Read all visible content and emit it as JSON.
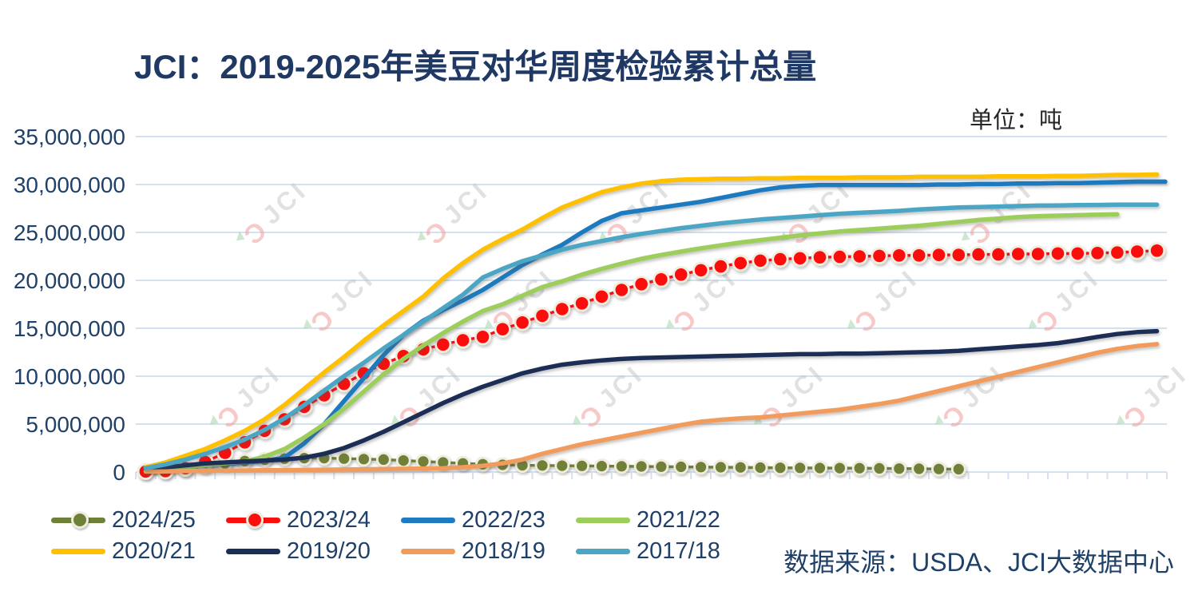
{
  "title": "JCI：2019-2025年美豆对华周度检验累计总量",
  "unit_label": "单位：吨",
  "source_label": "数据来源：USDA、JCI大数据中心",
  "watermark": {
    "mark": "Ɔ",
    "text": "JCI"
  },
  "y_axis": {
    "tick_labels": [
      "35,000,000",
      "30,000,000",
      "25,000,000",
      "20,000,000",
      "15,000,000",
      "10,000,000",
      "5,000,000",
      "0"
    ],
    "tick_values": [
      35000000,
      30000000,
      25000000,
      20000000,
      15000000,
      10000000,
      5000000,
      0
    ]
  },
  "x_axis": {
    "categories_count": 52,
    "description": "marketing-year week index (Sep–Aug)"
  },
  "chart_data": {
    "type": "line",
    "title": "JCI：2019-2025年美豆对华周度检验累计总量",
    "ylabel": "吨",
    "ylim": [
      0,
      35000000
    ],
    "values_unit": "million tons",
    "grid": "horizontal",
    "legend_position": "bottom",
    "series": [
      {
        "name": "2024/25",
        "color": "#6F8038",
        "marker": true,
        "dashed": true,
        "values": [
          0.05,
          0.12,
          0.3,
          0.6,
          0.9,
          1.15,
          1.3,
          1.4,
          1.45,
          1.45,
          1.4,
          1.35,
          1.3,
          1.2,
          1.1,
          1.0,
          0.9,
          0.82,
          0.75,
          0.7,
          0.68,
          0.66,
          0.64,
          0.62,
          0.6,
          0.58,
          0.56,
          0.54,
          0.52,
          0.5,
          0.48,
          0.46,
          0.44,
          0.43,
          0.42,
          0.41,
          0.4,
          0.38,
          0.36,
          0.34,
          0.32,
          0.3
        ]
      },
      {
        "name": "2023/24",
        "color": "#FB0F0C",
        "marker": true,
        "dashed": true,
        "values": [
          0.05,
          0.1,
          0.4,
          1.05,
          2.0,
          3.1,
          4.3,
          5.5,
          6.8,
          8.0,
          9.2,
          10.3,
          11.3,
          12.1,
          12.8,
          13.3,
          13.75,
          14.1,
          14.9,
          15.6,
          16.3,
          17.0,
          17.6,
          18.3,
          19.0,
          19.6,
          20.1,
          20.6,
          21.05,
          21.45,
          21.8,
          22.05,
          22.2,
          22.3,
          22.4,
          22.45,
          22.5,
          22.55,
          22.6,
          22.6,
          22.65,
          22.65,
          22.7,
          22.7,
          22.75,
          22.75,
          22.8,
          22.8,
          22.85,
          22.9,
          23.0,
          23.1
        ]
      },
      {
        "name": "2022/23",
        "color": "#1F7AC0",
        "extend_to_end": true,
        "values": [
          0.15,
          0.3,
          0.5,
          0.7,
          0.85,
          1.0,
          1.15,
          1.5,
          3.0,
          5.0,
          7.4,
          9.8,
          12.2,
          14.3,
          15.8,
          16.9,
          17.9,
          19.0,
          20.3,
          21.6,
          22.7,
          23.7,
          25.0,
          26.2,
          27.0,
          27.3,
          27.6,
          27.9,
          28.2,
          28.6,
          29.0,
          29.4,
          29.7,
          29.85,
          29.95,
          29.95,
          29.95,
          29.95,
          29.95,
          29.95,
          30.0,
          30.0,
          30.05,
          30.05,
          30.1,
          30.1,
          30.15,
          30.15,
          30.2,
          30.25,
          30.3,
          30.3
        ]
      },
      {
        "name": "2021/22",
        "color": "#9DCE5C",
        "values": [
          0.2,
          0.35,
          0.5,
          0.7,
          0.9,
          1.1,
          1.6,
          2.4,
          3.6,
          5.0,
          6.6,
          8.4,
          10.2,
          11.8,
          13.2,
          14.5,
          15.7,
          16.8,
          17.5,
          18.4,
          19.3,
          19.9,
          20.6,
          21.2,
          21.75,
          22.25,
          22.65,
          23.0,
          23.35,
          23.65,
          23.95,
          24.2,
          24.45,
          24.7,
          24.9,
          25.1,
          25.25,
          25.4,
          25.55,
          25.7,
          25.9,
          26.1,
          26.3,
          26.45,
          26.6,
          26.7,
          26.75,
          26.8,
          26.85,
          26.9
        ]
      },
      {
        "name": "2020/21",
        "color": "#FFC000",
        "values": [
          0.5,
          1.0,
          1.7,
          2.4,
          3.3,
          4.3,
          5.5,
          7.0,
          8.7,
          10.4,
          12.0,
          13.7,
          15.3,
          16.8,
          18.3,
          20.2,
          21.8,
          23.2,
          24.3,
          25.3,
          26.5,
          27.6,
          28.4,
          29.2,
          29.7,
          30.1,
          30.35,
          30.5,
          30.55,
          30.6,
          30.6,
          30.65,
          30.65,
          30.7,
          30.7,
          30.7,
          30.75,
          30.75,
          30.75,
          30.8,
          30.8,
          30.8,
          30.8,
          30.85,
          30.85,
          30.85,
          30.9,
          30.9,
          30.95,
          31.0,
          31.0,
          31.05
        ]
      },
      {
        "name": "2019/20",
        "color": "#1A2F57",
        "values": [
          0.3,
          0.5,
          0.7,
          0.9,
          1.0,
          1.1,
          1.2,
          1.3,
          1.5,
          1.9,
          2.5,
          3.3,
          4.2,
          5.2,
          6.2,
          7.2,
          8.1,
          8.9,
          9.6,
          10.3,
          10.8,
          11.2,
          11.45,
          11.65,
          11.8,
          11.9,
          11.95,
          12.0,
          12.05,
          12.1,
          12.15,
          12.2,
          12.25,
          12.3,
          12.3,
          12.35,
          12.35,
          12.4,
          12.45,
          12.5,
          12.55,
          12.65,
          12.8,
          12.95,
          13.1,
          13.25,
          13.45,
          13.75,
          14.1,
          14.4,
          14.6,
          14.7
        ]
      },
      {
        "name": "2018/19",
        "color": "#F19B5C",
        "values": [
          0.05,
          0.07,
          0.1,
          0.12,
          0.14,
          0.16,
          0.18,
          0.2,
          0.22,
          0.24,
          0.26,
          0.28,
          0.3,
          0.33,
          0.36,
          0.4,
          0.5,
          0.65,
          0.9,
          1.3,
          1.9,
          2.4,
          2.9,
          3.3,
          3.7,
          4.1,
          4.5,
          4.9,
          5.25,
          5.45,
          5.6,
          5.7,
          5.9,
          6.1,
          6.3,
          6.5,
          6.8,
          7.1,
          7.45,
          7.95,
          8.45,
          8.95,
          9.45,
          9.95,
          10.45,
          10.95,
          11.45,
          11.95,
          12.45,
          12.85,
          13.15,
          13.35
        ]
      },
      {
        "name": "2017/18",
        "color": "#4CA5C5",
        "values": [
          0.4,
          0.8,
          1.3,
          1.9,
          2.6,
          3.4,
          4.4,
          5.6,
          7.0,
          8.5,
          10.0,
          11.4,
          12.9,
          14.3,
          15.7,
          17.1,
          18.5,
          20.3,
          21.2,
          22.0,
          22.6,
          23.2,
          23.7,
          24.1,
          24.5,
          24.85,
          25.15,
          25.45,
          25.7,
          25.95,
          26.15,
          26.35,
          26.5,
          26.65,
          26.8,
          26.95,
          27.05,
          27.15,
          27.25,
          27.4,
          27.5,
          27.6,
          27.65,
          27.7,
          27.75,
          27.8,
          27.82,
          27.85,
          27.87,
          27.9,
          27.9,
          27.9
        ]
      }
    ]
  },
  "legend": {
    "marker_ring_color": "#F1EDDE"
  },
  "style": {
    "grid_color": "#D3E2F0",
    "axis_text_color": "#1F4068",
    "title_color": "#1F3864"
  }
}
